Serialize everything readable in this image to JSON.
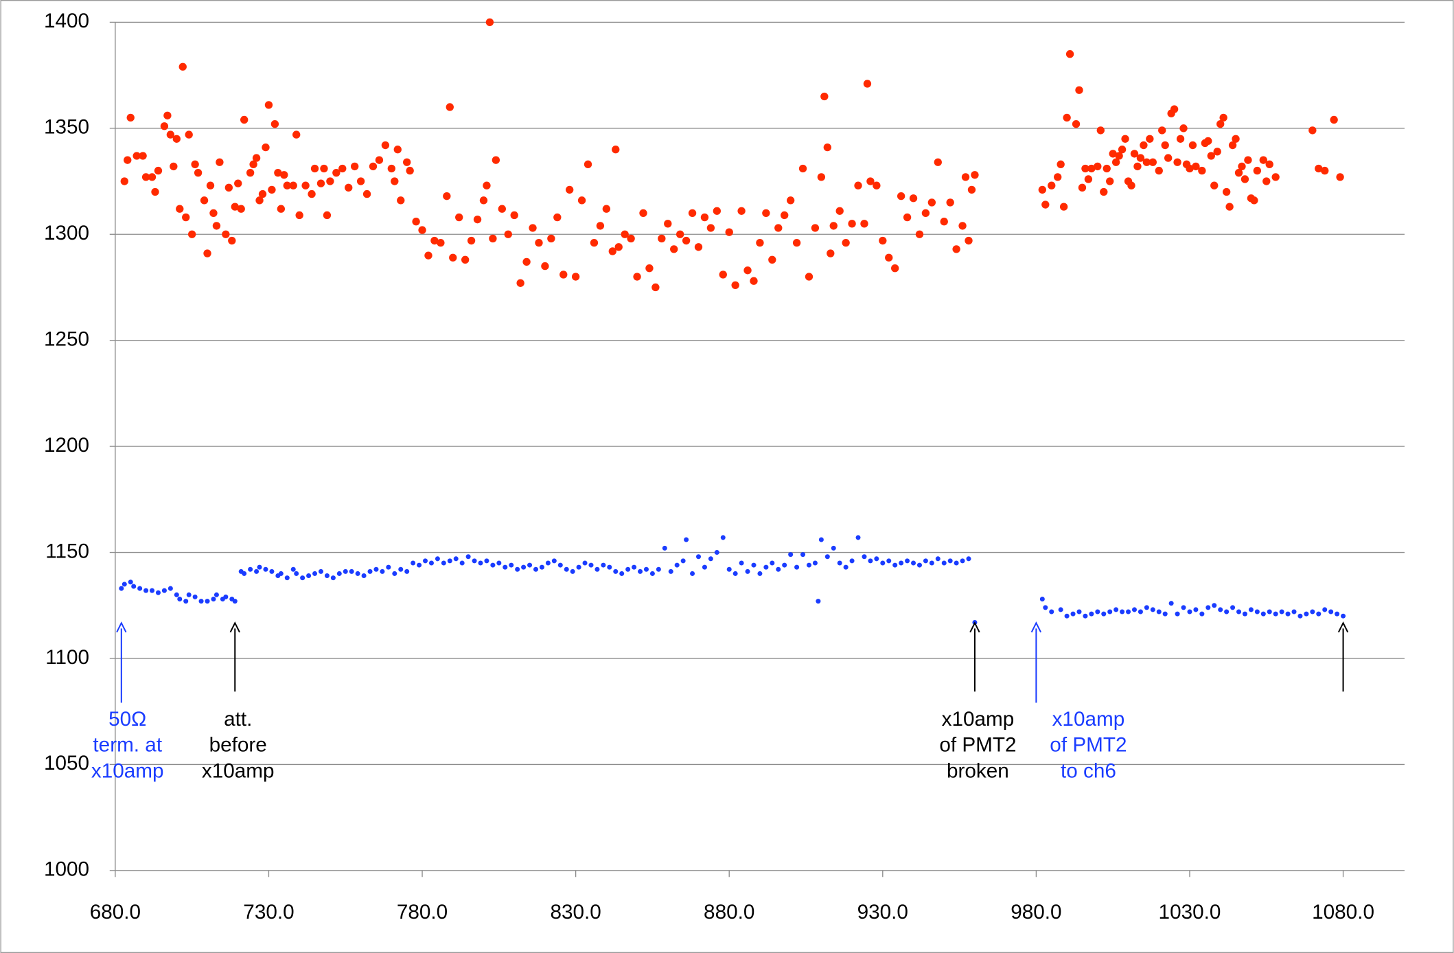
{
  "chart_data": {
    "type": "scatter",
    "xlim": [
      680,
      1100
    ],
    "ylim": [
      1000,
      1400
    ],
    "xticks": [
      {
        "value": 680,
        "label": "680.0"
      },
      {
        "value": 730,
        "label": "730.0"
      },
      {
        "value": 780,
        "label": "780.0"
      },
      {
        "value": 830,
        "label": "830.0"
      },
      {
        "value": 880,
        "label": "880.0"
      },
      {
        "value": 930,
        "label": "930.0"
      },
      {
        "value": 980,
        "label": "980.0"
      },
      {
        "value": 1030,
        "label": "1030.0"
      },
      {
        "value": 1080,
        "label": "1080.0"
      }
    ],
    "yticks": [
      1000,
      1050,
      1100,
      1150,
      1200,
      1250,
      1300,
      1350,
      1400
    ],
    "grid": true,
    "series": [
      {
        "color": "#ff2a00",
        "x": [
          683,
          684,
          685,
          687,
          689,
          690,
          692,
          693,
          694,
          696,
          697,
          698,
          699,
          700,
          701,
          702,
          703,
          704,
          705,
          706,
          707,
          709,
          710,
          711,
          712,
          713,
          714,
          716,
          717,
          718,
          719,
          720,
          721,
          722,
          724,
          725,
          726,
          727,
          728,
          729,
          730,
          731,
          732,
          733,
          734,
          735,
          736,
          738,
          739,
          740,
          742,
          744,
          745,
          747,
          748,
          749,
          750,
          752,
          754,
          756,
          758,
          760,
          762,
          764,
          766,
          768,
          770,
          771,
          772,
          773,
          775,
          776,
          778,
          780,
          782,
          784,
          786,
          788,
          789,
          790,
          792,
          794,
          796,
          798,
          800,
          801,
          802,
          803,
          804,
          806,
          808,
          810,
          812,
          814,
          816,
          818,
          820,
          822,
          824,
          826,
          828,
          830,
          832,
          834,
          836,
          838,
          840,
          842,
          843,
          844,
          846,
          848,
          850,
          852,
          854,
          856,
          858,
          860,
          862,
          864,
          866,
          868,
          870,
          872,
          874,
          876,
          878,
          880,
          882,
          884,
          886,
          888,
          890,
          892,
          894,
          896,
          898,
          900,
          902,
          904,
          906,
          908,
          910,
          911,
          912,
          913,
          914,
          916,
          918,
          920,
          922,
          924,
          925,
          926,
          928,
          930,
          932,
          934,
          936,
          938,
          940,
          942,
          944,
          946,
          948,
          950,
          952,
          954,
          956,
          957,
          958,
          959,
          960,
          982,
          983,
          985,
          987,
          988,
          989,
          990,
          991,
          993,
          994,
          995,
          996,
          997,
          998,
          1000,
          1001,
          1002,
          1003,
          1004,
          1005,
          1006,
          1007,
          1008,
          1009,
          1010,
          1011,
          1012,
          1013,
          1014,
          1015,
          1016,
          1017,
          1018,
          1020,
          1021,
          1022,
          1023,
          1024,
          1025,
          1026,
          1027,
          1028,
          1029,
          1030,
          1031,
          1032,
          1034,
          1035,
          1036,
          1037,
          1038,
          1039,
          1040,
          1041,
          1042,
          1043,
          1044,
          1045,
          1046,
          1047,
          1048,
          1049,
          1050,
          1051,
          1052,
          1054,
          1055,
          1056,
          1058,
          1070,
          1072,
          1074,
          1077,
          1079
        ],
        "values": [
          1325,
          1335,
          1355,
          1337,
          1337,
          1327,
          1327,
          1320,
          1330,
          1351,
          1356,
          1347,
          1332,
          1345,
          1312,
          1379,
          1308,
          1347,
          1300,
          1333,
          1329,
          1316,
          1291,
          1323,
          1310,
          1304,
          1334,
          1300,
          1322,
          1297,
          1313,
          1324,
          1312,
          1354,
          1329,
          1333,
          1336,
          1316,
          1319,
          1341,
          1361,
          1321,
          1352,
          1329,
          1312,
          1328,
          1323,
          1323,
          1347,
          1309,
          1323,
          1319,
          1331,
          1324,
          1331,
          1309,
          1325,
          1329,
          1331,
          1322,
          1332,
          1325,
          1319,
          1332,
          1335,
          1342,
          1331,
          1325,
          1340,
          1316,
          1334,
          1330,
          1306,
          1302,
          1290,
          1297,
          1296,
          1318,
          1360,
          1289,
          1308,
          1288,
          1297,
          1307,
          1316,
          1323,
          1400,
          1298,
          1335,
          1312,
          1300,
          1309,
          1277,
          1287,
          1303,
          1296,
          1285,
          1298,
          1308,
          1281,
          1321,
          1280,
          1316,
          1333,
          1296,
          1304,
          1312,
          1292,
          1340,
          1294,
          1300,
          1298,
          1280,
          1310,
          1284,
          1275,
          1298,
          1305,
          1293,
          1300,
          1297,
          1310,
          1294,
          1308,
          1303,
          1311,
          1281,
          1301,
          1276,
          1311,
          1283,
          1278,
          1296,
          1310,
          1288,
          1303,
          1309,
          1316,
          1296,
          1331,
          1280,
          1303,
          1327,
          1365,
          1341,
          1291,
          1304,
          1311,
          1296,
          1305,
          1323,
          1305,
          1371,
          1325,
          1323,
          1297,
          1289,
          1284,
          1318,
          1308,
          1317,
          1300,
          1310,
          1315,
          1334,
          1306,
          1315,
          1293,
          1304,
          1327,
          1297,
          1321,
          1328,
          1321,
          1314,
          1323,
          1327,
          1333,
          1313,
          1355,
          1385,
          1352,
          1368,
          1322,
          1331,
          1326,
          1331,
          1332,
          1349,
          1320,
          1331,
          1325,
          1338,
          1334,
          1337,
          1340,
          1345,
          1325,
          1323,
          1338,
          1332,
          1336,
          1342,
          1334,
          1345,
          1334,
          1330,
          1349,
          1342,
          1336,
          1357,
          1359,
          1334,
          1345,
          1350,
          1333,
          1331,
          1342,
          1332,
          1330,
          1343,
          1344,
          1337,
          1323,
          1339,
          1352,
          1355,
          1320,
          1313,
          1342,
          1345,
          1329,
          1332,
          1326,
          1335,
          1317,
          1316,
          1330,
          1335,
          1325,
          1333,
          1327,
          1349,
          1331,
          1330,
          1354,
          1327
        ]
      },
      {
        "color": "#1a3cff",
        "x": [
          682,
          683,
          685,
          686,
          688,
          690,
          692,
          694,
          696,
          698,
          700,
          701,
          703,
          704,
          706,
          708,
          710,
          712,
          713,
          715,
          716,
          718,
          719,
          721,
          722,
          724,
          726,
          727,
          729,
          731,
          733,
          734,
          736,
          738,
          739,
          741,
          743,
          745,
          747,
          749,
          751,
          753,
          755,
          757,
          759,
          761,
          763,
          765,
          767,
          769,
          771,
          773,
          775,
          777,
          779,
          781,
          783,
          785,
          787,
          789,
          791,
          793,
          795,
          797,
          799,
          801,
          803,
          805,
          807,
          809,
          811,
          813,
          815,
          817,
          819,
          821,
          823,
          825,
          827,
          829,
          831,
          833,
          835,
          837,
          839,
          841,
          843,
          845,
          847,
          849,
          851,
          853,
          855,
          857,
          859,
          861,
          863,
          865,
          866,
          868,
          870,
          872,
          874,
          876,
          878,
          880,
          882,
          884,
          886,
          888,
          890,
          892,
          894,
          896,
          898,
          900,
          902,
          904,
          906,
          908,
          909,
          910,
          912,
          914,
          916,
          918,
          920,
          922,
          924,
          926,
          928,
          930,
          932,
          934,
          936,
          938,
          940,
          942,
          944,
          946,
          948,
          950,
          952,
          954,
          956,
          958,
          960,
          982,
          983,
          985,
          988,
          990,
          992,
          994,
          996,
          998,
          1000,
          1002,
          1004,
          1006,
          1008,
          1010,
          1012,
          1014,
          1016,
          1018,
          1020,
          1022,
          1024,
          1026,
          1028,
          1030,
          1032,
          1034,
          1036,
          1038,
          1040,
          1042,
          1044,
          1046,
          1048,
          1050,
          1052,
          1054,
          1056,
          1058,
          1060,
          1062,
          1064,
          1066,
          1068,
          1070,
          1072,
          1074,
          1076,
          1078,
          1080
        ],
        "values": [
          1133,
          1135,
          1136,
          1134,
          1133,
          1132,
          1132,
          1131,
          1132,
          1133,
          1130,
          1128,
          1127,
          1130,
          1129,
          1127,
          1127,
          1128,
          1130,
          1128,
          1129,
          1128,
          1127,
          1141,
          1140,
          1142,
          1141,
          1143,
          1142,
          1141,
          1139,
          1140,
          1138,
          1142,
          1140,
          1138,
          1139,
          1140,
          1141,
          1139,
          1138,
          1140,
          1141,
          1141,
          1140,
          1139,
          1141,
          1142,
          1141,
          1143,
          1140,
          1142,
          1141,
          1145,
          1144,
          1146,
          1145,
          1147,
          1145,
          1146,
          1147,
          1145,
          1148,
          1146,
          1145,
          1146,
          1144,
          1145,
          1143,
          1144,
          1142,
          1143,
          1144,
          1142,
          1143,
          1145,
          1146,
          1144,
          1142,
          1141,
          1143,
          1145,
          1144,
          1142,
          1144,
          1143,
          1141,
          1140,
          1142,
          1143,
          1141,
          1142,
          1140,
          1142,
          1152,
          1141,
          1144,
          1146,
          1156,
          1140,
          1148,
          1143,
          1147,
          1150,
          1157,
          1142,
          1140,
          1145,
          1141,
          1144,
          1140,
          1143,
          1145,
          1142,
          1144,
          1149,
          1143,
          1149,
          1144,
          1145,
          1127,
          1156,
          1148,
          1152,
          1145,
          1143,
          1146,
          1157,
          1148,
          1146,
          1147,
          1145,
          1146,
          1144,
          1145,
          1146,
          1145,
          1144,
          1146,
          1145,
          1147,
          1145,
          1146,
          1145,
          1146,
          1147,
          1117,
          1128,
          1124,
          1122,
          1123,
          1120,
          1121,
          1122,
          1120,
          1121,
          1122,
          1121,
          1122,
          1123,
          1122,
          1122,
          1123,
          1122,
          1124,
          1123,
          1122,
          1121,
          1126,
          1121,
          1124,
          1122,
          1123,
          1121,
          1124,
          1125,
          1123,
          1122,
          1124,
          1122,
          1121,
          1123,
          1122,
          1121,
          1122,
          1121,
          1122,
          1121,
          1122,
          1120,
          1121,
          1122,
          1121,
          1123,
          1122,
          1121,
          1120
        ]
      }
    ],
    "arrows": [
      {
        "x": 682,
        "color": "#1a3cff"
      },
      {
        "x": 719,
        "color": "#000000"
      },
      {
        "x": 960,
        "color": "#000000"
      },
      {
        "x": 980,
        "color": "#1a3cff"
      },
      {
        "x": 1080,
        "color": "#000000"
      }
    ],
    "notes": [
      {
        "x": 684,
        "color": "#1a3cff",
        "lines": [
          "50Ω",
          "term. at",
          "x10amp"
        ]
      },
      {
        "x": 720,
        "color": "#000000",
        "lines": [
          "att.",
          "before",
          "x10amp"
        ]
      },
      {
        "x": 961,
        "color": "#000000",
        "lines": [
          "x10amp",
          "of PMT2",
          "broken"
        ]
      },
      {
        "x": 997,
        "color": "#1a3cff",
        "lines": [
          "x10amp",
          "of PMT2",
          "to ch6"
        ]
      }
    ]
  }
}
